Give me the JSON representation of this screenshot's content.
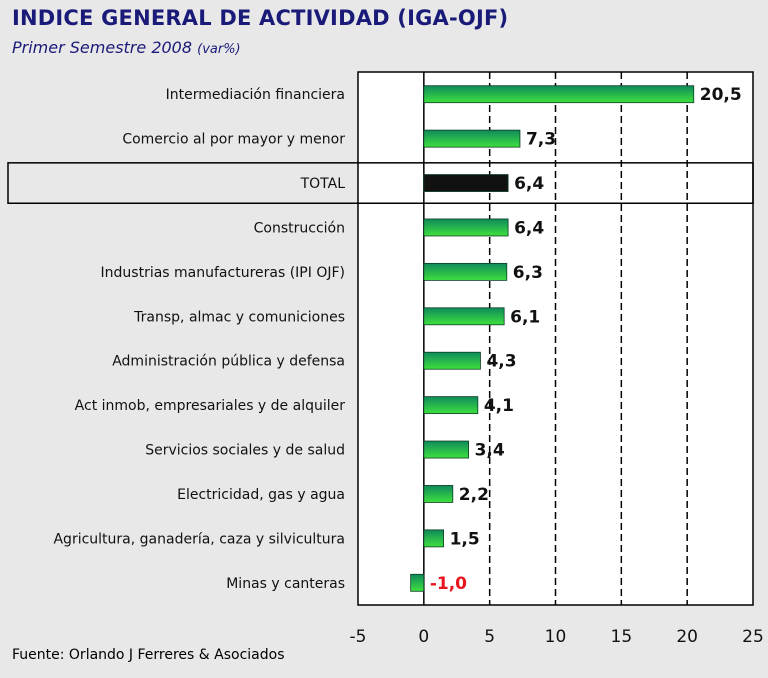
{
  "title": "INDICE GENERAL DE ACTIVIDAD (IGA-OJF)",
  "subtitle": "Primer Semestre 2008",
  "subtitle_unit": "(var%)",
  "source": "Fuente: Orlando J Ferreres & Asociados",
  "colors": {
    "bar_top": "#0f8a5c",
    "bar_bottom": "#3ee03e",
    "total_bar": "#111111",
    "negative_value": "#e8141e",
    "title": "#1a1a78"
  },
  "chart_data": {
    "type": "bar",
    "orientation": "horizontal",
    "categories": [
      "Intermediación financiera",
      "Comercio al por mayor y menor",
      "TOTAL",
      "Construcción",
      "Industrias manufactureras (IPI OJF)",
      "Transp, almac y comuniciones",
      "Administración pública y defensa",
      "Act inmob, empresariales y de alquiler",
      "Servicios sociales y de salud",
      "Electricidad, gas y agua",
      "Agricultura, ganadería, caza y silvicultura",
      "Minas y canteras"
    ],
    "values": [
      20.5,
      7.3,
      6.4,
      6.4,
      6.3,
      6.1,
      4.3,
      4.1,
      3.4,
      2.2,
      1.5,
      -1.0
    ],
    "value_labels": [
      "20,5",
      "7,3",
      "6,4",
      "6,4",
      "6,3",
      "6,1",
      "4,3",
      "4,1",
      "3,4",
      "2,2",
      "1,5",
      "-1,0"
    ],
    "highlight_category": "TOTAL",
    "xlim": [
      -5,
      25
    ],
    "xticks": [
      -5,
      0,
      5,
      10,
      15,
      20,
      25
    ],
    "grid": "vertical dashed",
    "legend": "none"
  }
}
